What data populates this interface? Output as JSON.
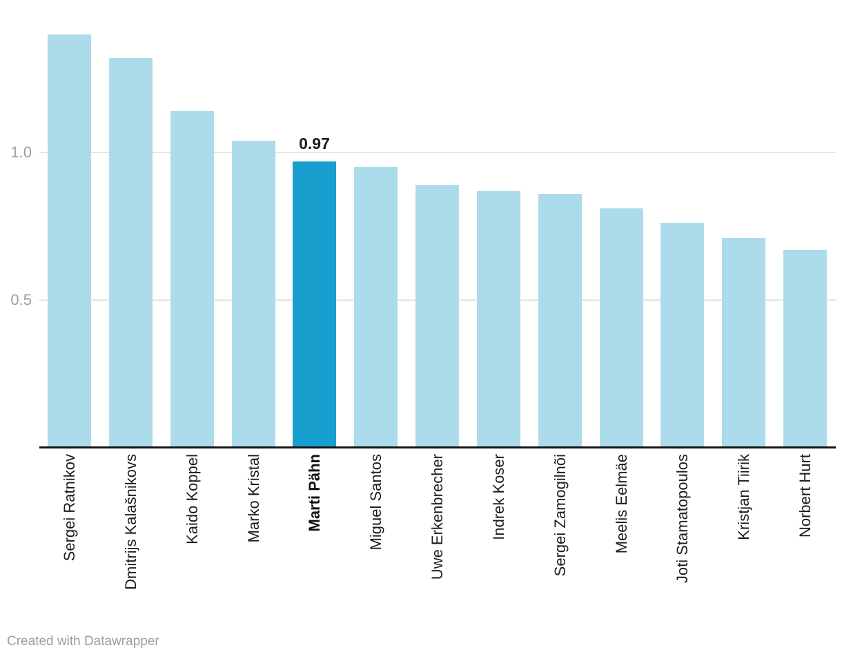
{
  "chart_data": {
    "type": "bar",
    "categories": [
      "Sergei Ratnikov",
      "Dmitrijs Kalašnikovs",
      "Kaido Koppel",
      "Marko Kristal",
      "Marti Pähn",
      "Miguel Santos",
      "Uwe Erkenbrecher",
      "Indrek Koser",
      "Sergei Zamogilnõi",
      "Meelis Eelmäe",
      "Joti Stamatopoulos",
      "Kristjan Tiirik",
      "Norbert Hurt"
    ],
    "values": [
      1.4,
      1.32,
      1.14,
      1.04,
      0.97,
      0.95,
      0.89,
      0.87,
      0.86,
      0.81,
      0.76,
      0.71,
      0.67
    ],
    "title": "",
    "xlabel": "",
    "ylabel": "",
    "ylim": [
      0,
      1.45
    ],
    "grid": true,
    "yticks": [
      {
        "value": 1.0,
        "label": "1.0"
      },
      {
        "value": 0.5,
        "label": "0.5"
      }
    ],
    "highlight": {
      "index": 4,
      "category": "Marti Pähn",
      "value_label": "0.97"
    },
    "colors": {
      "bar": "#acdcec",
      "highlight_bar": "#189fce"
    },
    "legend": "none"
  },
  "footer": {
    "credit": "Created with Datawrapper"
  }
}
